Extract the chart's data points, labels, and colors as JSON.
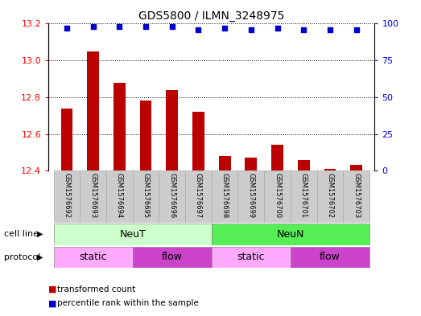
{
  "title": "GDS5800 / ILMN_3248975",
  "samples": [
    "GSM1576692",
    "GSM1576693",
    "GSM1576694",
    "GSM1576695",
    "GSM1576696",
    "GSM1576697",
    "GSM1576698",
    "GSM1576699",
    "GSM1576700",
    "GSM1576701",
    "GSM1576702",
    "GSM1576703"
  ],
  "transformed_counts": [
    12.74,
    13.05,
    12.88,
    12.78,
    12.84,
    12.72,
    12.48,
    12.47,
    12.54,
    12.46,
    12.41,
    12.43
  ],
  "percentile_ranks": [
    97,
    98,
    98,
    98,
    98,
    96,
    97,
    96,
    97,
    96,
    96,
    96
  ],
  "ylim_left": [
    12.4,
    13.2
  ],
  "ylim_right": [
    0,
    100
  ],
  "yticks_left": [
    12.4,
    12.6,
    12.8,
    13.0,
    13.2
  ],
  "yticks_right": [
    0,
    25,
    50,
    75,
    100
  ],
  "cell_line_colors": {
    "NeuT": "#ccffcc",
    "NeuN": "#55ee55"
  },
  "protocol_colors": {
    "static": "#ffaaff",
    "flow": "#cc44cc"
  },
  "bar_color": "#bb0000",
  "dot_color": "#0000cc",
  "bar_bottom": 12.4,
  "legend_items": [
    {
      "label": "transformed count",
      "color": "#bb0000"
    },
    {
      "label": "percentile rank within the sample",
      "color": "#0000cc"
    }
  ]
}
